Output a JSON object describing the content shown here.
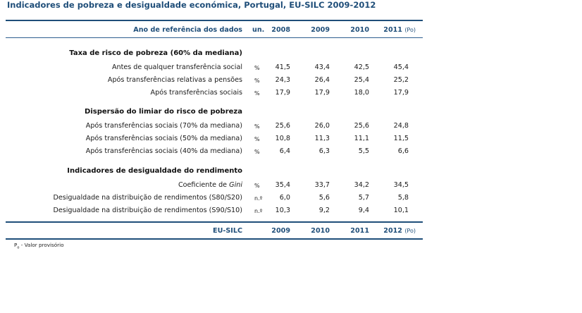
{
  "title": "Indicadores de pobreza e desigualdade económica, Portugal, EU-SILC 2009-2012",
  "header": {
    "label": "Ano de referência dos dados",
    "unit": "un.",
    "years": [
      "2008",
      "2009",
      "2010",
      "2011"
    ],
    "provisional_mark": "(Po)"
  },
  "sections": [
    {
      "title": "Taxa de risco de pobreza (60% da mediana)",
      "rows": [
        {
          "label": "Antes de qualquer transferência social",
          "unit": "%",
          "values": [
            "41,5",
            "43,4",
            "42,5",
            "45,4"
          ]
        },
        {
          "label": "Após transferências relativas a pensões",
          "unit": "%",
          "values": [
            "24,3",
            "26,4",
            "25,4",
            "25,2"
          ]
        },
        {
          "label": "Após transferências sociais",
          "unit": "%",
          "values": [
            "17,9",
            "17,9",
            "18,0",
            "17,9"
          ]
        }
      ]
    },
    {
      "title": "Dispersão do limiar do risco de pobreza",
      "rows": [
        {
          "label": "Após transferências sociais (70% da mediana)",
          "unit": "%",
          "values": [
            "25,6",
            "26,0",
            "25,6",
            "24,8"
          ]
        },
        {
          "label": "Após transferências sociais (50% da mediana)",
          "unit": "%",
          "values": [
            "10,8",
            "11,3",
            "11,1",
            "11,5"
          ]
        },
        {
          "label": "Após transferências sociais (40% da mediana)",
          "unit": "%",
          "values": [
            "6,4",
            "6,3",
            "5,5",
            "6,6"
          ]
        }
      ]
    },
    {
      "title": "Indicadores de desigualdade do rendimento",
      "rows": [
        {
          "label_prefix": "Coeficiente de ",
          "label_italic": "Gini",
          "unit": "%",
          "values": [
            "35,4",
            "33,7",
            "34,2",
            "34,5"
          ]
        },
        {
          "label": "Desigualdade na distribuição de rendimentos (S80/S20)",
          "unit": "n.º",
          "values": [
            "6,0",
            "5,6",
            "5,7",
            "5,8"
          ]
        },
        {
          "label": "Desigualdade na distribuição de rendimentos (S90/S10)",
          "unit": "n.º",
          "values": [
            "10,3",
            "9,2",
            "9,4",
            "10,1"
          ]
        }
      ]
    }
  ],
  "footer": {
    "label": "EU-SILC",
    "years": [
      "2009",
      "2010",
      "2011",
      "2012"
    ],
    "provisional_mark": "(Po)"
  },
  "footnote": {
    "symbol": "P",
    "symbol_sub": "o",
    "text": " - Valor provisório"
  }
}
